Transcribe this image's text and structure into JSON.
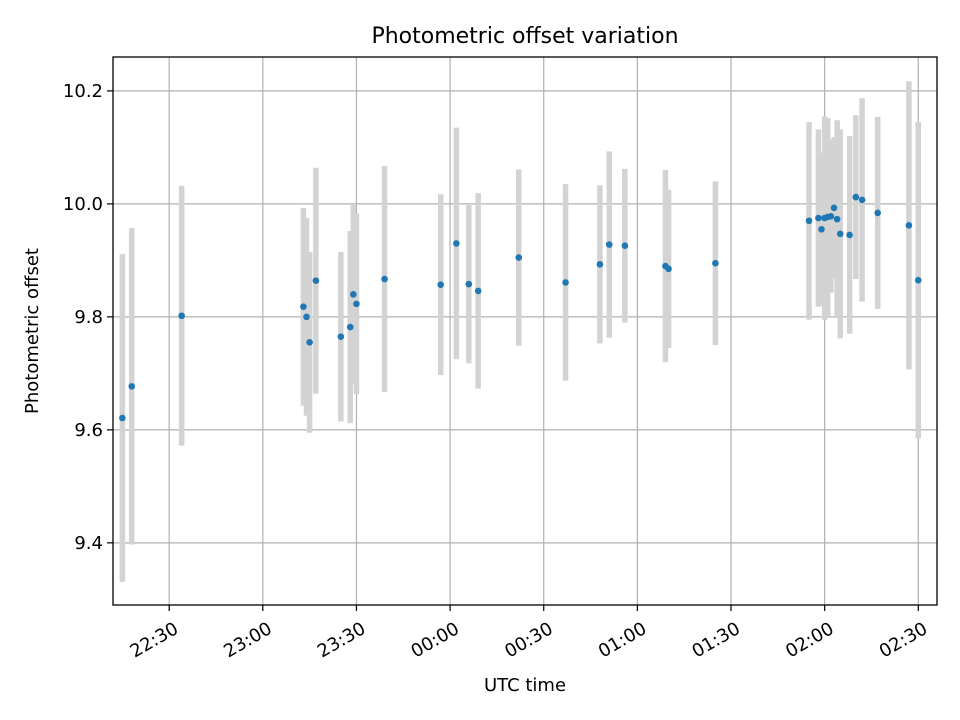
{
  "chart_data": {
    "type": "scatter",
    "title": "Photometric offset variation",
    "xlabel": "UTC time",
    "ylabel": "Photometric offset",
    "x_unit": "UTC time (HH:MM)",
    "xlim": [
      "22:12",
      "02:36"
    ],
    "ylim": [
      9.29,
      10.26
    ],
    "x_ticks": [
      "22:30",
      "23:00",
      "23:30",
      "00:00",
      "00:30",
      "01:00",
      "01:30",
      "02:00",
      "02:30"
    ],
    "y_ticks": [
      9.4,
      9.6,
      9.8,
      10.0,
      10.2
    ],
    "y_tick_labels": [
      "9.4",
      "9.6",
      "9.8",
      "10.0",
      "10.2"
    ],
    "grid": true,
    "colors": {
      "point": "#1f77b4",
      "errorbar": "#d3d3d3"
    },
    "points": [
      {
        "t": "22:15",
        "y": 9.621,
        "err": 0.29
      },
      {
        "t": "22:18",
        "y": 9.677,
        "err": 0.28
      },
      {
        "t": "22:34",
        "y": 9.802,
        "err": 0.23
      },
      {
        "t": "23:13",
        "y": 9.818,
        "err": 0.175
      },
      {
        "t": "23:14",
        "y": 9.8,
        "err": 0.175
      },
      {
        "t": "23:15",
        "y": 9.755,
        "err": 0.16
      },
      {
        "t": "23:17",
        "y": 9.864,
        "err": 0.2
      },
      {
        "t": "23:25",
        "y": 9.765,
        "err": 0.15
      },
      {
        "t": "23:28",
        "y": 9.782,
        "err": 0.17
      },
      {
        "t": "23:29",
        "y": 9.84,
        "err": 0.16
      },
      {
        "t": "23:30",
        "y": 9.823,
        "err": 0.16
      },
      {
        "t": "23:39",
        "y": 9.867,
        "err": 0.2
      },
      {
        "t": "23:57",
        "y": 9.857,
        "err": 0.16
      },
      {
        "t": "00:02",
        "y": 9.93,
        "err": 0.205
      },
      {
        "t": "00:06",
        "y": 9.858,
        "err": 0.14
      },
      {
        "t": "00:09",
        "y": 9.846,
        "err": 0.173
      },
      {
        "t": "00:22",
        "y": 9.905,
        "err": 0.156
      },
      {
        "t": "00:37",
        "y": 9.861,
        "err": 0.174
      },
      {
        "t": "00:48",
        "y": 9.893,
        "err": 0.14
      },
      {
        "t": "00:51",
        "y": 9.928,
        "err": 0.165
      },
      {
        "t": "00:56",
        "y": 9.926,
        "err": 0.136
      },
      {
        "t": "01:09",
        "y": 9.89,
        "err": 0.17
      },
      {
        "t": "01:10",
        "y": 9.885,
        "err": 0.14
      },
      {
        "t": "01:25",
        "y": 9.895,
        "err": 0.145
      },
      {
        "t": "01:55",
        "y": 9.97,
        "err": 0.175
      },
      {
        "t": "01:58",
        "y": 9.975,
        "err": 0.157
      },
      {
        "t": "01:59",
        "y": 9.955,
        "err": 0.135
      },
      {
        "t": "02:00",
        "y": 9.975,
        "err": 0.18
      },
      {
        "t": "02:01",
        "y": 9.977,
        "err": 0.175
      },
      {
        "t": "02:02",
        "y": 9.978,
        "err": 0.135
      },
      {
        "t": "02:03",
        "y": 9.993,
        "err": 0.125
      },
      {
        "t": "02:04",
        "y": 9.973,
        "err": 0.175
      },
      {
        "t": "02:05",
        "y": 9.947,
        "err": 0.185
      },
      {
        "t": "02:08",
        "y": 9.945,
        "err": 0.175
      },
      {
        "t": "02:10",
        "y": 10.012,
        "err": 0.145
      },
      {
        "t": "02:12",
        "y": 10.007,
        "err": 0.18
      },
      {
        "t": "02:17",
        "y": 9.984,
        "err": 0.17
      },
      {
        "t": "02:27",
        "y": 9.962,
        "err": 0.255
      },
      {
        "t": "02:30",
        "y": 9.865,
        "err": 0.28
      }
    ]
  }
}
